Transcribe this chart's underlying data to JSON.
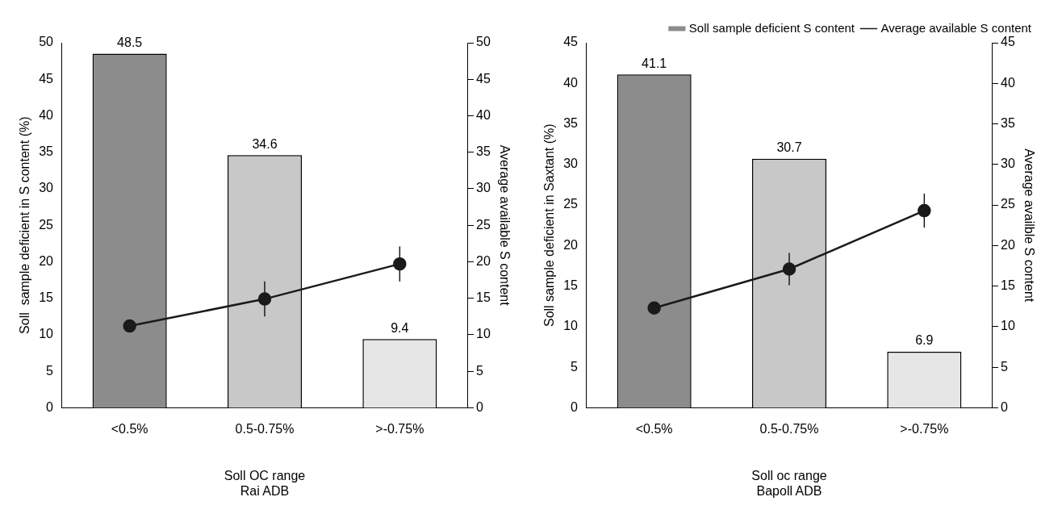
{
  "chart_data": [
    {
      "type": "bar",
      "categories": [
        "<0.5%",
        "0.5-0.75%",
        ">-0.75%"
      ],
      "xlabel": "Soll OC range\nRai ADB",
      "ylabel": "Soll  sample deficient in S content (%)",
      "y2label": "Average available S content",
      "ylim": [
        0,
        50
      ],
      "yticks": [
        0,
        5,
        10,
        15,
        20,
        25,
        30,
        35,
        40,
        45,
        50
      ],
      "y2lim": [
        0,
        50
      ],
      "y2ticks": [
        0,
        5,
        10,
        15,
        20,
        25,
        30,
        35,
        40,
        45,
        50
      ],
      "grid": false,
      "legend": false,
      "marker": "circle",
      "series": [
        {
          "colors": [
            "#8c8c8c",
            "#c8c8c8",
            "#e6e6e6"
          ],
          "values": [
            48.5,
            34.6,
            9.4
          ],
          "value_labels": [
            "48.5",
            "34.6",
            "9.4"
          ]
        },
        {
          "type": "line",
          "axis": "y2",
          "color": "#1a1a1a",
          "values": [
            11.2,
            14.9,
            19.7
          ],
          "errors": [
            null,
            2.4,
            2.4
          ]
        }
      ]
    },
    {
      "type": "bar",
      "categories": [
        "<0.5%",
        "0.5-0.75%",
        ">-0.75%"
      ],
      "xlabel": "Soll oc range\nBapoll ADB",
      "ylabel": "Soll sample deficient in Saxtant (%)",
      "y2label": "Average availble S content",
      "ylim": [
        0,
        45
      ],
      "yticks": [
        0,
        5,
        10,
        15,
        20,
        25,
        30,
        35,
        40,
        45
      ],
      "y2lim": [
        0,
        45
      ],
      "y2ticks": [
        0,
        5,
        10,
        15,
        20,
        25,
        30,
        35,
        40,
        45
      ],
      "grid": false,
      "legend": "top right",
      "marker": "circle",
      "series": [
        {
          "name": "Soll sample deficient S content",
          "colors": [
            "#8c8c8c",
            "#c8c8c8",
            "#e6e6e6"
          ],
          "values": [
            41.1,
            30.7,
            6.9
          ],
          "value_labels": [
            "41.1",
            "30.7",
            "6.9"
          ]
        },
        {
          "type": "line",
          "axis": "y2",
          "name": "Average available S content",
          "color": "#1a1a1a",
          "values": [
            12.3,
            17.1,
            24.3
          ],
          "errors": [
            null,
            2,
            2.1
          ]
        }
      ]
    }
  ]
}
